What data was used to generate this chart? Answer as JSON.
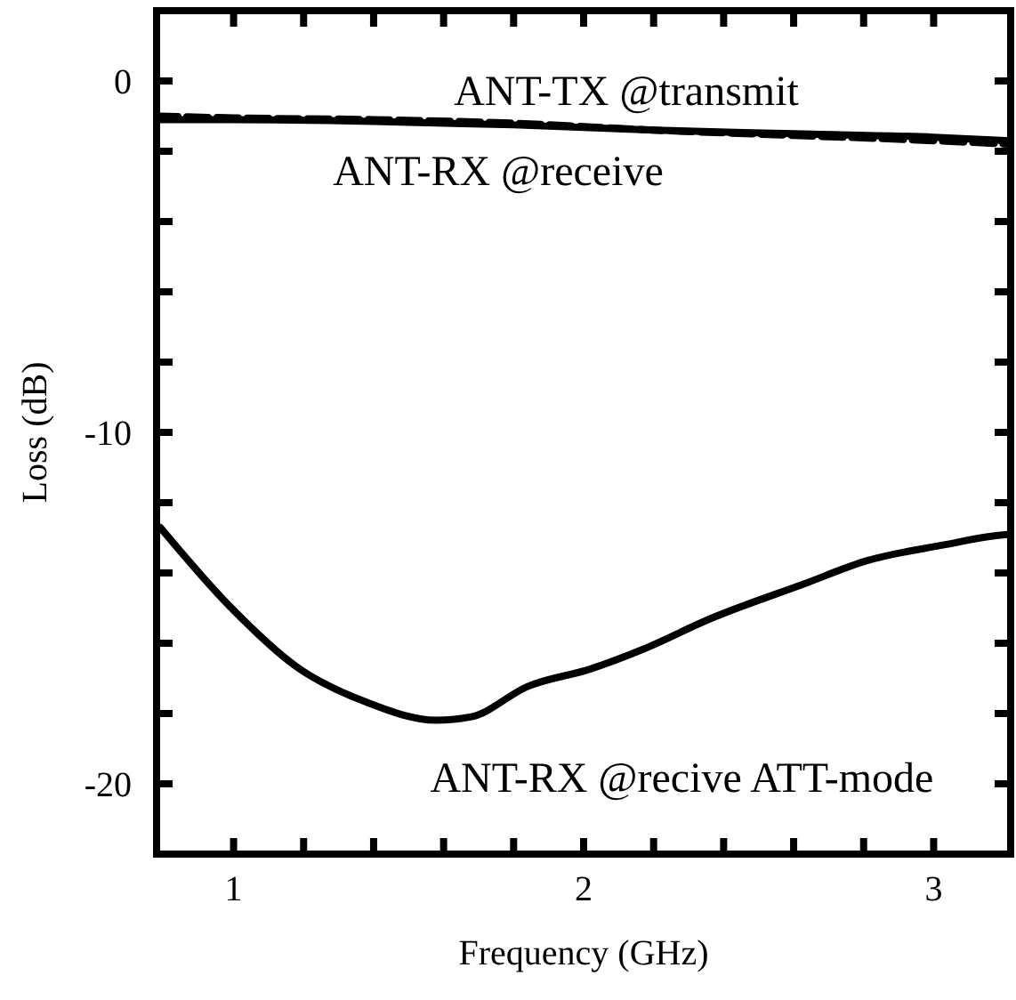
{
  "chart_data": {
    "type": "line",
    "xlabel": "Frequency  (GHz)",
    "ylabel": "Loss  (dB)",
    "xlim": [
      0.78,
      3.22
    ],
    "ylim": [
      -22,
      2
    ],
    "xticks": [
      1,
      {
        "value": 1.2,
        "label": null
      },
      {
        "value": 1.4,
        "label": null
      },
      {
        "value": 1.6,
        "label": null
      },
      {
        "value": 1.8,
        "label": null
      },
      2,
      {
        "value": 2.2,
        "label": null
      },
      {
        "value": 2.4,
        "label": null
      },
      {
        "value": 2.6,
        "label": null
      },
      {
        "value": 2.8,
        "label": null
      },
      3
    ],
    "yticks": [
      0,
      {
        "value": -2,
        "label": null
      },
      {
        "value": -4,
        "label": null
      },
      {
        "value": -6,
        "label": null
      },
      {
        "value": -8,
        "label": null
      },
      -10,
      {
        "value": -12,
        "label": null
      },
      {
        "value": -14,
        "label": null
      },
      {
        "value": -16,
        "label": null
      },
      {
        "value": -18,
        "label": null
      },
      -20
    ],
    "marker": "none",
    "series": [
      {
        "name": "ANT-TX @transmit",
        "color": "#000000",
        "line_style": "dashed",
        "x": [
          0.78,
          1.0,
          1.4,
          1.8,
          2.2,
          2.6,
          3.0,
          3.22
        ],
        "values": [
          -1.0,
          -1.05,
          -1.1,
          -1.2,
          -1.4,
          -1.55,
          -1.7,
          -1.8
        ]
      },
      {
        "name": "ANT-RX @receive",
        "color": "#000000",
        "line_style": "solid",
        "x": [
          0.78,
          1.0,
          1.4,
          1.8,
          2.2,
          2.6,
          3.0,
          3.22
        ],
        "values": [
          -1.1,
          -1.1,
          -1.15,
          -1.25,
          -1.4,
          -1.5,
          -1.6,
          -1.7
        ]
      },
      {
        "name": "ANT-RX @recive ATT-mode",
        "color": "#000000",
        "line_style": "solid",
        "x": [
          0.79,
          0.99,
          1.18,
          1.38,
          1.58,
          1.68,
          1.84,
          2.02,
          2.17,
          2.36,
          2.63,
          2.81,
          3.03,
          3.17,
          3.22
        ],
        "values": [
          -12.7,
          -14.96,
          -16.67,
          -17.68,
          -18.19,
          -18.09,
          -17.23,
          -16.73,
          -16.17,
          -15.31,
          -14.31,
          -13.65,
          -13.2,
          -12.95,
          -12.9
        ]
      }
    ]
  }
}
